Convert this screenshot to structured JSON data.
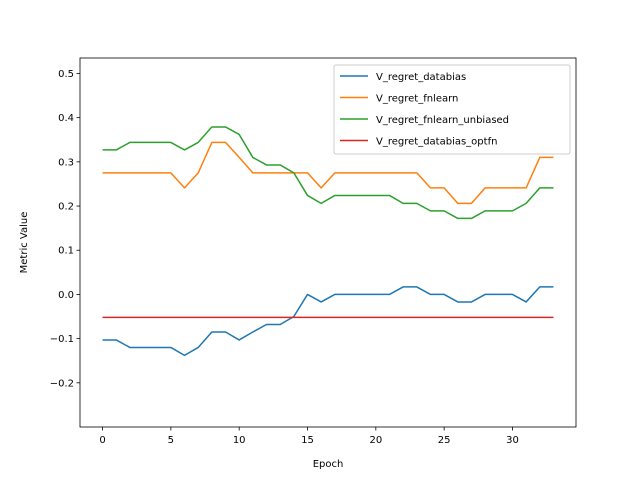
{
  "chart_data": {
    "type": "line",
    "title": "",
    "xlabel": "Epoch",
    "ylabel": "Metric Value",
    "xlim": [
      -1.65,
      34.65
    ],
    "ylim": [
      -0.3,
      0.535
    ],
    "xticks": [
      0,
      5,
      10,
      15,
      20,
      25,
      30
    ],
    "yticks": [
      -0.2,
      -0.1,
      0.0,
      0.1,
      0.2,
      0.3,
      0.4,
      0.5
    ],
    "ytick_labels": [
      "−0.2",
      "−0.1",
      "0.0",
      "0.1",
      "0.2",
      "0.3",
      "0.4",
      "0.5"
    ],
    "xtick_labels": [
      "0",
      "5",
      "10",
      "15",
      "20",
      "25",
      "30"
    ],
    "grid": false,
    "legend_position": "top-right",
    "x": [
      0,
      1,
      2,
      3,
      4,
      5,
      6,
      7,
      8,
      9,
      10,
      11,
      12,
      13,
      14,
      15,
      16,
      17,
      18,
      19,
      20,
      21,
      22,
      23,
      24,
      25,
      26,
      27,
      28,
      29,
      30,
      31,
      32,
      33
    ],
    "series": [
      {
        "name": "V_regret_databias",
        "color": "#1f77b4",
        "values": [
          -0.103,
          -0.103,
          -0.12,
          -0.12,
          -0.12,
          -0.12,
          -0.138,
          -0.12,
          -0.085,
          -0.085,
          -0.103,
          -0.085,
          -0.068,
          -0.068,
          -0.05,
          0.0,
          -0.017,
          0.0,
          0.0,
          0.0,
          0.0,
          0.0,
          0.017,
          0.017,
          0.0,
          0.0,
          -0.017,
          -0.017,
          0.0,
          0.0,
          0.0,
          -0.017,
          0.017,
          0.017
        ]
      },
      {
        "name": "V_regret_fnlearn",
        "color": "#ff7f0e",
        "values": [
          0.275,
          0.275,
          0.275,
          0.275,
          0.275,
          0.275,
          0.241,
          0.275,
          0.344,
          0.344,
          0.31,
          0.275,
          0.275,
          0.275,
          0.275,
          0.275,
          0.241,
          0.275,
          0.275,
          0.275,
          0.275,
          0.275,
          0.275,
          0.275,
          0.241,
          0.241,
          0.206,
          0.206,
          0.241,
          0.241,
          0.241,
          0.241,
          0.31,
          0.31
        ]
      },
      {
        "name": "V_regret_fnlearn_unbiased",
        "color": "#2ca02c",
        "values": [
          0.327,
          0.327,
          0.344,
          0.344,
          0.344,
          0.344,
          0.327,
          0.344,
          0.379,
          0.379,
          0.362,
          0.31,
          0.293,
          0.293,
          0.275,
          0.224,
          0.206,
          0.224,
          0.224,
          0.224,
          0.224,
          0.224,
          0.206,
          0.206,
          0.189,
          0.189,
          0.172,
          0.172,
          0.189,
          0.189,
          0.189,
          0.206,
          0.241,
          0.241
        ]
      },
      {
        "name": "V_regret_databias_optfn",
        "color": "#d62728",
        "values": [
          -0.052,
          -0.052,
          -0.052,
          -0.052,
          -0.052,
          -0.052,
          -0.052,
          -0.052,
          -0.052,
          -0.052,
          -0.052,
          -0.052,
          -0.052,
          -0.052,
          -0.052,
          -0.052,
          -0.052,
          -0.052,
          -0.052,
          -0.052,
          -0.052,
          -0.052,
          -0.052,
          -0.052,
          -0.052,
          -0.052,
          -0.052,
          -0.052,
          -0.052,
          -0.052,
          -0.052,
          -0.052,
          -0.052,
          -0.052
        ]
      }
    ]
  }
}
